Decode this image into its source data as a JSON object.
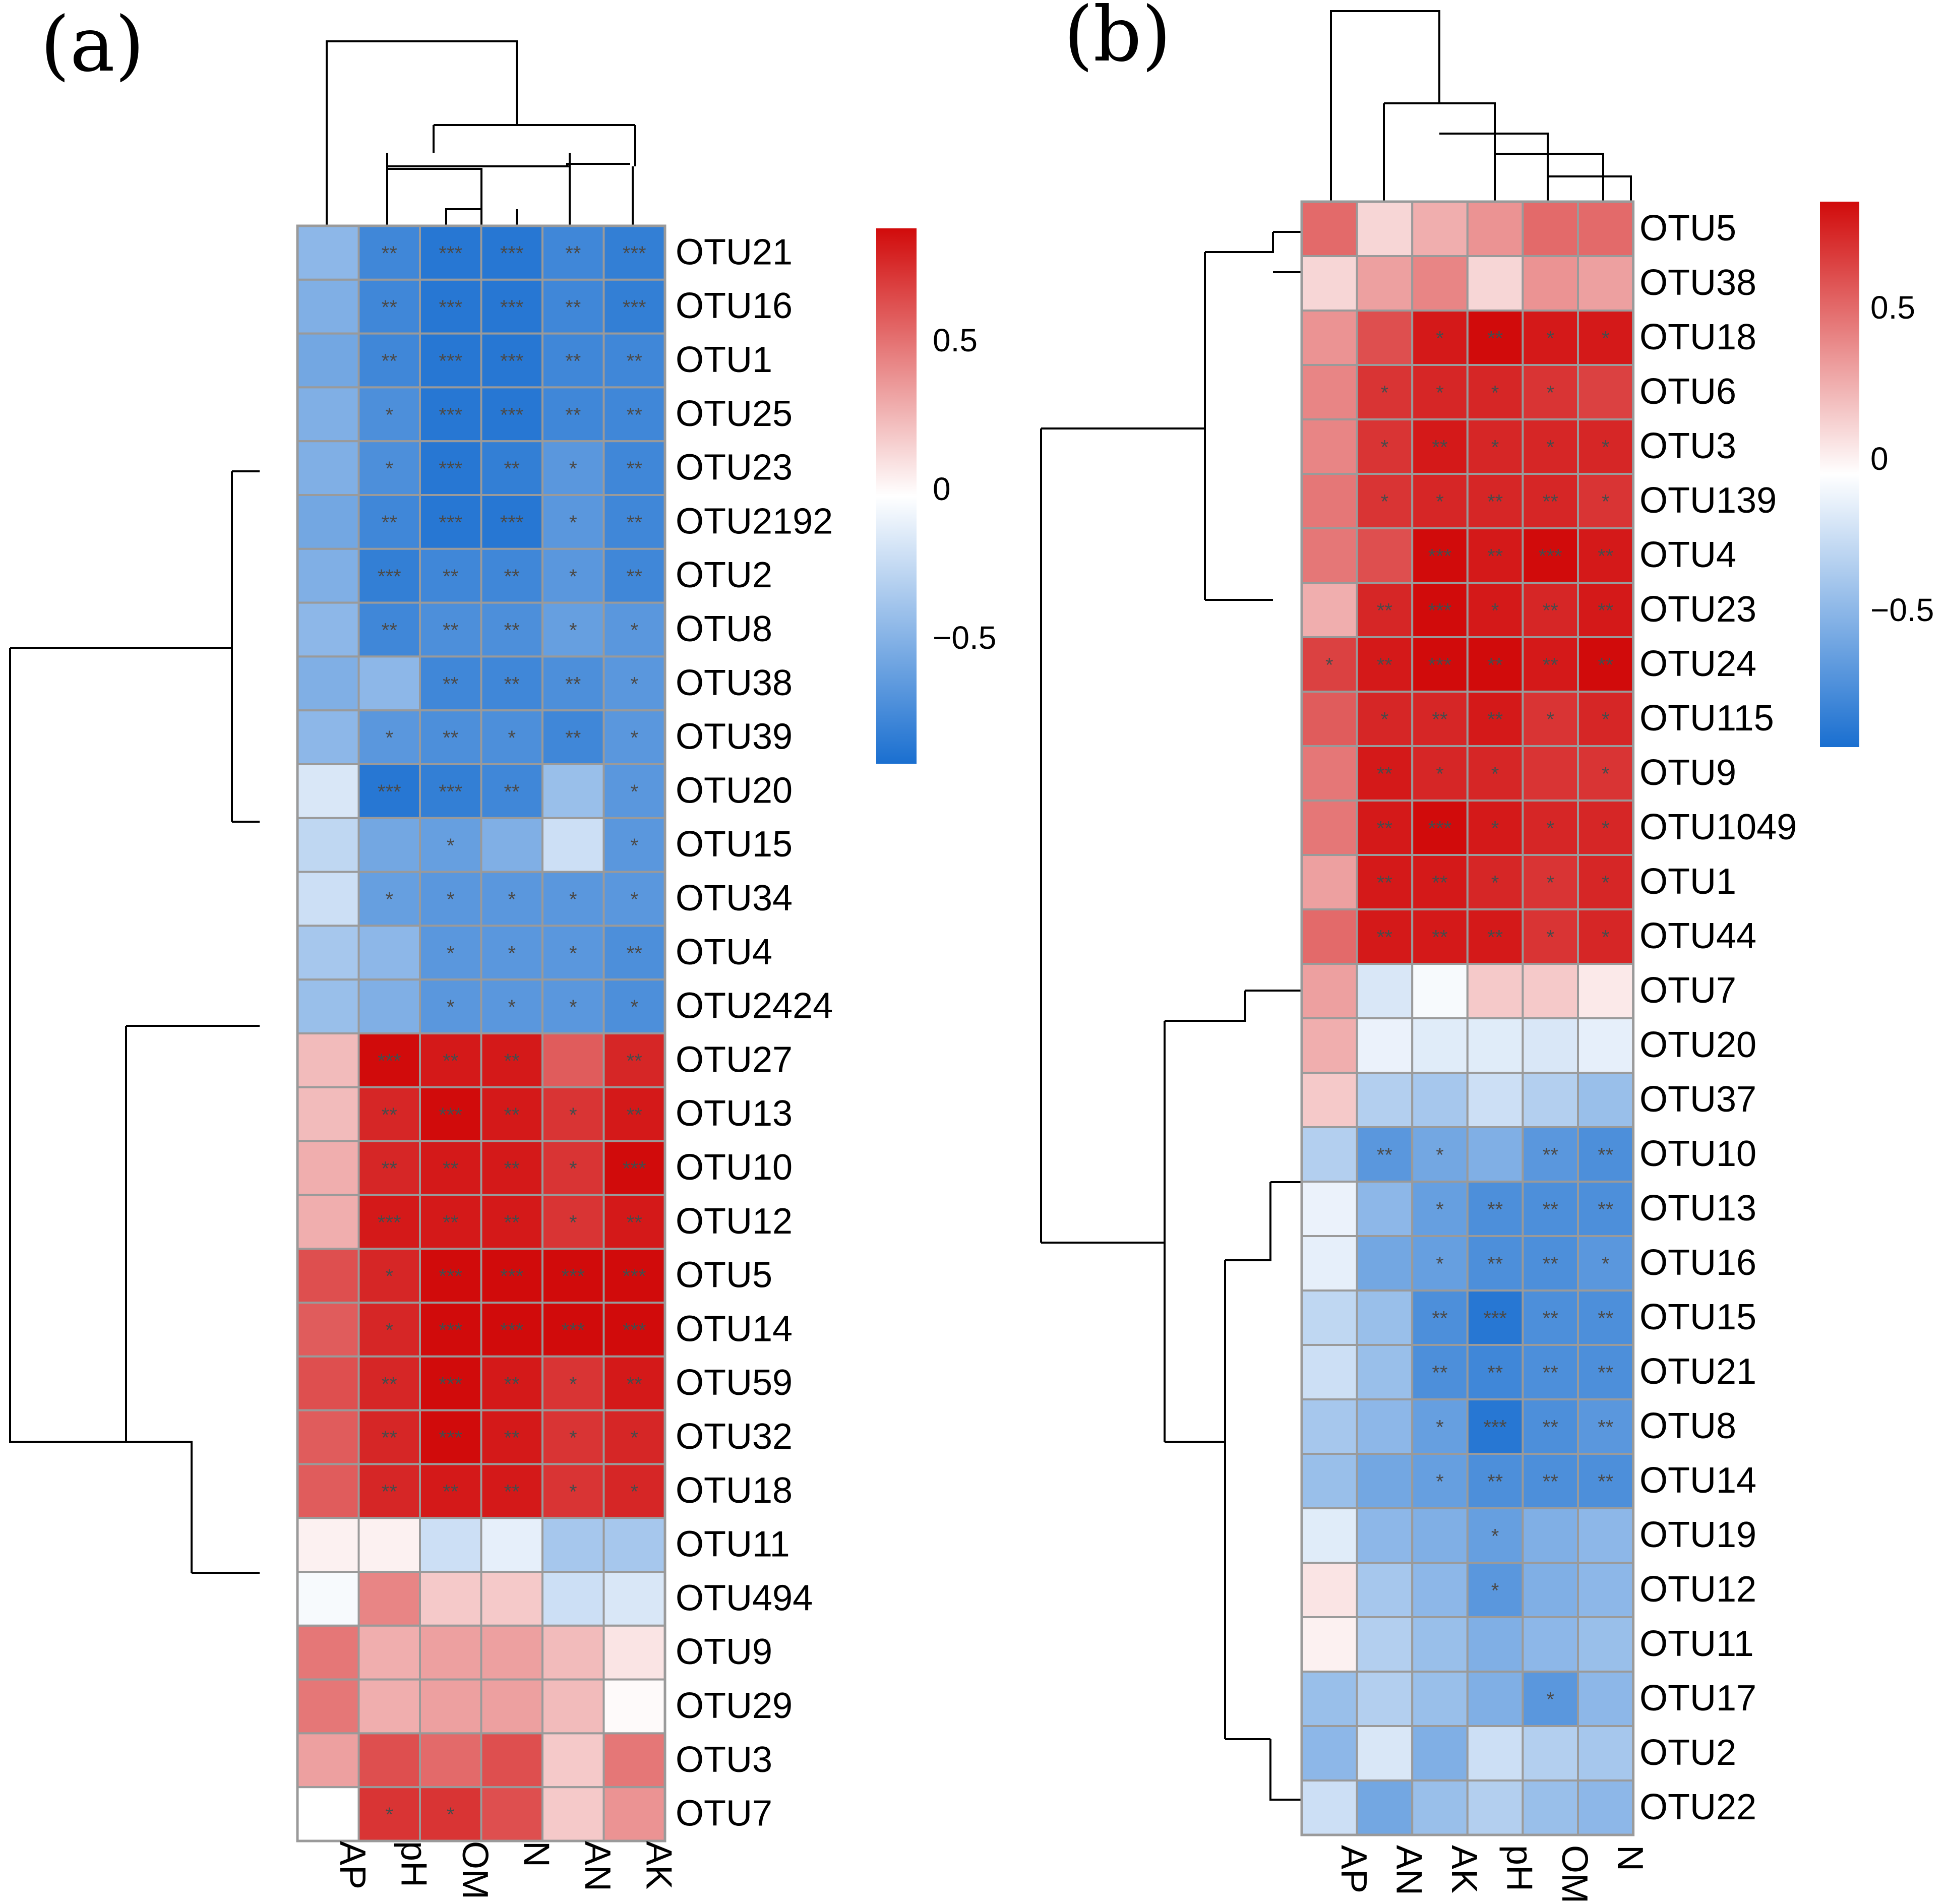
{
  "figure": {
    "palette": {
      "neg": "#1a6fd0",
      "mid": "#ffffff",
      "pos": "#d10b0b"
    }
  },
  "chart_data": [
    {
      "type": "heatmap",
      "panel_label": "(a)",
      "title": "",
      "columns": [
        "AP",
        "pH",
        "OM",
        "N",
        "AN",
        "AK"
      ],
      "rows": [
        "OTU21",
        "OTU16",
        "OTU1",
        "OTU25",
        "OTU23",
        "OTU2192",
        "OTU2",
        "OTU8",
        "OTU38",
        "OTU39",
        "OTU20",
        "OTU15",
        "OTU34",
        "OTU4",
        "OTU2424",
        "OTU27",
        "OTU13",
        "OTU10",
        "OTU12",
        "OTU5",
        "OTU14",
        "OTU59",
        "OTU32",
        "OTU18",
        "OTU11",
        "OTU494",
        "OTU9",
        "OTU29",
        "OTU3",
        "OTU7"
      ],
      "values": [
        [
          -0.45,
          -0.75,
          -0.85,
          -0.85,
          -0.75,
          -0.8
        ],
        [
          -0.5,
          -0.75,
          -0.85,
          -0.85,
          -0.75,
          -0.8
        ],
        [
          -0.55,
          -0.75,
          -0.85,
          -0.85,
          -0.75,
          -0.75
        ],
        [
          -0.5,
          -0.7,
          -0.85,
          -0.85,
          -0.75,
          -0.75
        ],
        [
          -0.5,
          -0.7,
          -0.85,
          -0.8,
          -0.65,
          -0.75
        ],
        [
          -0.55,
          -0.75,
          -0.85,
          -0.85,
          -0.65,
          -0.75
        ],
        [
          -0.5,
          -0.8,
          -0.75,
          -0.75,
          -0.65,
          -0.75
        ],
        [
          -0.45,
          -0.75,
          -0.7,
          -0.7,
          -0.6,
          -0.65
        ],
        [
          -0.5,
          -0.45,
          -0.75,
          -0.75,
          -0.7,
          -0.65
        ],
        [
          -0.45,
          -0.65,
          -0.7,
          -0.7,
          -0.75,
          -0.65
        ],
        [
          -0.15,
          -0.85,
          -0.8,
          -0.75,
          -0.4,
          -0.65
        ],
        [
          -0.25,
          -0.55,
          -0.6,
          -0.5,
          -0.2,
          -0.65
        ],
        [
          -0.2,
          -0.6,
          -0.65,
          -0.65,
          -0.65,
          -0.65
        ],
        [
          -0.35,
          -0.45,
          -0.65,
          -0.65,
          -0.65,
          -0.7
        ],
        [
          -0.4,
          -0.5,
          -0.65,
          -0.65,
          -0.65,
          -0.7
        ],
        [
          0.25,
          0.9,
          0.85,
          0.85,
          0.6,
          0.8
        ],
        [
          0.25,
          0.8,
          0.9,
          0.85,
          0.75,
          0.85
        ],
        [
          0.3,
          0.8,
          0.85,
          0.85,
          0.75,
          0.9
        ],
        [
          0.3,
          0.85,
          0.85,
          0.85,
          0.75,
          0.85
        ],
        [
          0.65,
          0.8,
          0.9,
          0.9,
          0.9,
          0.9
        ],
        [
          0.6,
          0.8,
          0.9,
          0.9,
          0.9,
          0.9
        ],
        [
          0.65,
          0.8,
          0.9,
          0.85,
          0.75,
          0.85
        ],
        [
          0.6,
          0.8,
          0.9,
          0.85,
          0.75,
          0.8
        ],
        [
          0.6,
          0.8,
          0.85,
          0.85,
          0.75,
          0.8
        ],
        [
          0.05,
          0.05,
          -0.2,
          -0.1,
          -0.35,
          -0.35
        ],
        [
          -0.03,
          0.45,
          0.2,
          0.2,
          -0.2,
          -0.15
        ],
        [
          0.5,
          0.3,
          0.35,
          0.35,
          0.25,
          0.1
        ],
        [
          0.5,
          0.3,
          0.35,
          0.35,
          0.25,
          0.02
        ],
        [
          0.35,
          0.65,
          0.55,
          0.65,
          0.2,
          0.5
        ],
        [
          0.0,
          0.75,
          0.75,
          0.65,
          0.2,
          0.4
        ]
      ],
      "stars": [
        [
          "",
          "**",
          "***",
          "***",
          "**",
          "***"
        ],
        [
          "",
          "**",
          "***",
          "***",
          "**",
          "***"
        ],
        [
          "",
          "**",
          "***",
          "***",
          "**",
          "**"
        ],
        [
          "",
          "*",
          "***",
          "***",
          "**",
          "**"
        ],
        [
          "",
          "*",
          "***",
          "**",
          "*",
          "**"
        ],
        [
          "",
          "**",
          "***",
          "***",
          "*",
          "**"
        ],
        [
          "",
          "***",
          "**",
          "**",
          "*",
          "**"
        ],
        [
          "",
          "**",
          "**",
          "**",
          "*",
          "*"
        ],
        [
          "",
          "",
          "**",
          "**",
          "**",
          "*"
        ],
        [
          "",
          "*",
          "**",
          "*",
          "**",
          "*"
        ],
        [
          "",
          "***",
          "***",
          "**",
          "",
          "*"
        ],
        [
          "",
          "",
          "*",
          "",
          "",
          "*"
        ],
        [
          "",
          "*",
          "*",
          "*",
          "*",
          "*"
        ],
        [
          "",
          "",
          "*",
          "*",
          "*",
          "**"
        ],
        [
          "",
          "",
          "*",
          "*",
          "*",
          "*"
        ],
        [
          "",
          "***",
          "**",
          "**",
          "",
          "**"
        ],
        [
          "",
          "**",
          "***",
          "**",
          "*",
          "**"
        ],
        [
          "",
          "**",
          "**",
          "**",
          "*",
          "***"
        ],
        [
          "",
          "***",
          "**",
          "**",
          "*",
          "**"
        ],
        [
          "",
          "*",
          "***",
          "***",
          "***",
          "***"
        ],
        [
          "",
          "*",
          "***",
          "***",
          "***",
          "***"
        ],
        [
          "",
          "**",
          "***",
          "**",
          "*",
          "**"
        ],
        [
          "",
          "**",
          "***",
          "**",
          "*",
          "*"
        ],
        [
          "",
          "**",
          "**",
          "**",
          "*",
          "*"
        ],
        [
          "",
          "",
          "",
          "",
          "",
          ""
        ],
        [
          "",
          "",
          "",
          "",
          "",
          ""
        ],
        [
          "",
          "",
          "",
          "",
          "",
          ""
        ],
        [
          "",
          "",
          "",
          "",
          "",
          ""
        ],
        [
          "",
          "",
          "",
          "",
          "",
          ""
        ],
        [
          "",
          "*",
          "*",
          "",
          "",
          ""
        ]
      ],
      "legend": {
        "ticks": [
          0.5,
          0,
          -0.5
        ],
        "tick_labels": [
          "0.5",
          "0",
          "−0.5"
        ],
        "range": [
          -0.9,
          0.9
        ]
      }
    },
    {
      "type": "heatmap",
      "panel_label": "(b)",
      "title": "",
      "columns": [
        "AP",
        "AN",
        "AK",
        "pH",
        "OM",
        "N"
      ],
      "rows": [
        "OTU5",
        "OTU38",
        "OTU18",
        "OTU6",
        "OTU3",
        "OTU139",
        "OTU4",
        "OTU23",
        "OTU24",
        "OTU115",
        "OTU9",
        "OTU1049",
        "OTU1",
        "OTU44",
        "OTU7",
        "OTU20",
        "OTU37",
        "OTU10",
        "OTU13",
        "OTU16",
        "OTU15",
        "OTU21",
        "OTU8",
        "OTU14",
        "OTU19",
        "OTU12",
        "OTU11",
        "OTU17",
        "OTU2",
        "OTU22"
      ],
      "values": [
        [
          0.55,
          0.15,
          0.3,
          0.4,
          0.55,
          0.55
        ],
        [
          0.15,
          0.35,
          0.45,
          0.15,
          0.4,
          0.35
        ],
        [
          0.4,
          0.65,
          0.85,
          0.9,
          0.85,
          0.85
        ],
        [
          0.45,
          0.75,
          0.8,
          0.8,
          0.75,
          0.7
        ],
        [
          0.45,
          0.75,
          0.85,
          0.8,
          0.8,
          0.8
        ],
        [
          0.5,
          0.75,
          0.8,
          0.8,
          0.8,
          0.75
        ],
        [
          0.5,
          0.65,
          0.9,
          0.85,
          0.9,
          0.85
        ],
        [
          0.3,
          0.8,
          0.9,
          0.85,
          0.8,
          0.85
        ],
        [
          0.7,
          0.85,
          0.9,
          0.9,
          0.85,
          0.9
        ],
        [
          0.6,
          0.8,
          0.8,
          0.85,
          0.75,
          0.8
        ],
        [
          0.5,
          0.85,
          0.8,
          0.8,
          0.75,
          0.75
        ],
        [
          0.5,
          0.85,
          0.9,
          0.85,
          0.8,
          0.8
        ],
        [
          0.35,
          0.85,
          0.85,
          0.8,
          0.75,
          0.8
        ],
        [
          0.55,
          0.85,
          0.85,
          0.85,
          0.75,
          0.8
        ],
        [
          0.35,
          -0.15,
          -0.03,
          0.2,
          0.2,
          0.08
        ],
        [
          0.3,
          -0.08,
          -0.12,
          -0.12,
          -0.15,
          -0.1
        ],
        [
          0.2,
          -0.3,
          -0.35,
          -0.2,
          -0.3,
          -0.4
        ],
        [
          -0.3,
          -0.65,
          -0.55,
          -0.5,
          -0.65,
          -0.7
        ],
        [
          -0.08,
          -0.45,
          -0.6,
          -0.7,
          -0.7,
          -0.7
        ],
        [
          -0.1,
          -0.55,
          -0.6,
          -0.7,
          -0.7,
          -0.65
        ],
        [
          -0.25,
          -0.4,
          -0.7,
          -0.85,
          -0.7,
          -0.7
        ],
        [
          -0.2,
          -0.4,
          -0.7,
          -0.75,
          -0.7,
          -0.7
        ],
        [
          -0.35,
          -0.45,
          -0.6,
          -0.85,
          -0.7,
          -0.65
        ],
        [
          -0.4,
          -0.55,
          -0.6,
          -0.7,
          -0.7,
          -0.7
        ],
        [
          -0.12,
          -0.45,
          -0.5,
          -0.6,
          -0.5,
          -0.45
        ],
        [
          0.1,
          -0.35,
          -0.45,
          -0.65,
          -0.5,
          -0.45
        ],
        [
          0.05,
          -0.3,
          -0.4,
          -0.5,
          -0.45,
          -0.4
        ],
        [
          -0.4,
          -0.3,
          -0.4,
          -0.5,
          -0.65,
          -0.45
        ],
        [
          -0.45,
          -0.15,
          -0.5,
          -0.2,
          -0.3,
          -0.35
        ],
        [
          -0.2,
          -0.55,
          -0.4,
          -0.3,
          -0.4,
          -0.45
        ]
      ],
      "stars": [
        [
          "",
          "",
          "",
          "",
          "",
          ""
        ],
        [
          "",
          "",
          "",
          "",
          "",
          ""
        ],
        [
          "",
          "",
          "*",
          "**",
          "*",
          "*"
        ],
        [
          "",
          "*",
          "*",
          "*",
          "*",
          ""
        ],
        [
          "",
          "*",
          "**",
          "*",
          "*",
          "*"
        ],
        [
          "",
          "*",
          "*",
          "**",
          "**",
          "*"
        ],
        [
          "",
          "",
          "***",
          "**",
          "***",
          "**"
        ],
        [
          "",
          "**",
          "***",
          "*",
          "**",
          "**"
        ],
        [
          "*",
          "**",
          "***",
          "**",
          "**",
          "**"
        ],
        [
          "",
          "*",
          "**",
          "**",
          "*",
          "*"
        ],
        [
          "",
          "**",
          "*",
          "*",
          "",
          "*"
        ],
        [
          "",
          "**",
          "***",
          "*",
          "*",
          "*"
        ],
        [
          "",
          "**",
          "**",
          "*",
          "*",
          "*"
        ],
        [
          "",
          "**",
          "**",
          "**",
          "*",
          "*"
        ],
        [
          "",
          "",
          "",
          "",
          "",
          ""
        ],
        [
          "",
          "",
          "",
          "",
          "",
          ""
        ],
        [
          "",
          "",
          "",
          "",
          "",
          ""
        ],
        [
          "",
          "**",
          "*",
          "",
          "**",
          "**"
        ],
        [
          "",
          "",
          "*",
          "**",
          "**",
          "**"
        ],
        [
          "",
          "",
          "*",
          "**",
          "**",
          "*"
        ],
        [
          "",
          "",
          "**",
          "***",
          "**",
          "**"
        ],
        [
          "",
          "",
          "**",
          "**",
          "**",
          "**"
        ],
        [
          "",
          "",
          "*",
          "***",
          "**",
          "**"
        ],
        [
          "",
          "",
          "*",
          "**",
          "**",
          "**"
        ],
        [
          "",
          "",
          "",
          "*",
          "",
          ""
        ],
        [
          "",
          "",
          "",
          "*",
          "",
          ""
        ],
        [
          "",
          "",
          "",
          "",
          "",
          ""
        ],
        [
          "",
          "",
          "",
          "",
          "*",
          ""
        ],
        [
          "",
          "",
          "",
          "",
          "",
          ""
        ],
        [
          "",
          "",
          "",
          "",
          "",
          ""
        ]
      ],
      "legend": {
        "ticks": [
          0.5,
          0,
          -0.5
        ],
        "tick_labels": [
          "0.5",
          "0",
          "−0.5"
        ],
        "range": [
          -0.9,
          0.9
        ]
      }
    }
  ]
}
